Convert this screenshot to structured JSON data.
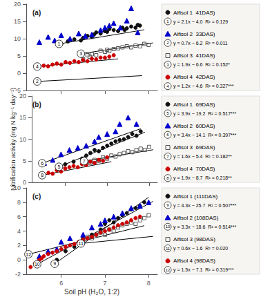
{
  "chart_data": [
    {
      "type": "scatter",
      "title": "(a)",
      "xlim": [
        5.2,
        8.2
      ],
      "xticks": [
        6,
        7,
        8
      ],
      "ylim": [
        -5,
        20
      ],
      "yticks": [
        -5,
        0,
        5,
        10,
        15,
        20
      ],
      "grid": false,
      "tick_labels": "y",
      "series": [
        {
          "name": "Alfisol 1  41DAS)",
          "marker": "circle",
          "color": "#111111",
          "number": 1,
          "number_at": [
            5.95,
            8.495
          ],
          "equation": "y = 2.1x − 4.0  R² = 0.129",
          "x": [
            6.0,
            6.15,
            6.3,
            6.45,
            6.5,
            6.6,
            6.7,
            6.75,
            6.8,
            6.9,
            7.0,
            7.05,
            7.1,
            7.2,
            7.3,
            7.4,
            7.45,
            7.5,
            7.6,
            7.7,
            7.75,
            7.8
          ],
          "y": [
            8.5,
            9.2,
            9.8,
            9.5,
            10.2,
            10.8,
            10.5,
            11.2,
            11.8,
            11.5,
            12.2,
            12.0,
            12.8,
            12.5,
            12.2,
            13.2,
            12.5,
            13.0,
            13.5,
            13.2,
            14.0,
            13.8
          ],
          "fit": {
            "x": [
              5.9,
              7.9
            ],
            "y": [
              8.39,
              12.59
            ]
          }
        },
        {
          "name": "Alfisol 2  33DAS)",
          "marker": "triangle",
          "color": "#0000cc",
          "number": 2,
          "number_at": [
            5.45,
            -2.385
          ],
          "equation": "y = 0.7x − 6.2  R² = 0.011",
          "x": [
            5.5,
            5.7,
            5.85,
            6.0,
            6.2,
            6.4,
            6.55,
            6.7,
            6.9,
            7.0,
            7.1,
            7.2,
            7.35,
            7.5,
            7.6,
            7.75
          ],
          "y": [
            9.0,
            10.5,
            9.5,
            11.0,
            10.0,
            11.5,
            10.8,
            11.2,
            12.5,
            13.2,
            13.8,
            14.5,
            13.2,
            15.2,
            18.8,
            11.8
          ],
          "fit": {
            "x": [
              5.4,
              7.85
            ],
            "y": [
              -2.42,
              -0.705
            ]
          }
        },
        {
          "name": "Alfisol 3  41DAS)",
          "marker": "square_open",
          "color": "#555555",
          "number": 3,
          "number_at": [
            6.45,
            5.655
          ],
          "equation": "y = 1.9x − 6.6  R² = 0.152*",
          "x": [
            6.5,
            6.6,
            6.65,
            6.7,
            6.8,
            6.9,
            7.0,
            7.05,
            7.1,
            7.2,
            7.3,
            7.4,
            7.5,
            7.6,
            7.7,
            7.8,
            7.9,
            8.0
          ],
          "y": [
            4.0,
            5.2,
            4.8,
            5.5,
            5.2,
            6.5,
            6.2,
            6.8,
            6.5,
            7.0,
            7.2,
            7.5,
            7.8,
            7.5,
            8.0,
            7.8,
            8.5,
            8.2
          ],
          "fit": {
            "x": [
              6.4,
              8.1
            ],
            "y": [
              5.56,
              8.79
            ]
          }
        },
        {
          "name": "Alfisol 4  42DAS)",
          "marker": "circle",
          "color": "#cc0000",
          "number": 4,
          "number_at": [
            5.45,
            1.94
          ],
          "equation": "y = 1.2x − 4.6  R² = 0.327***",
          "x": [
            5.5,
            5.6,
            5.7,
            5.8,
            5.9,
            6.0,
            6.1,
            6.2,
            6.3,
            6.4,
            6.5,
            6.6,
            6.7,
            6.8,
            6.9,
            7.0,
            7.1,
            7.2
          ],
          "y": [
            1.8,
            2.2,
            2.0,
            2.5,
            2.8,
            2.5,
            3.2,
            3.0,
            3.5,
            3.2,
            3.8,
            3.5,
            4.2,
            4.0,
            4.5,
            4.5,
            4.8,
            5.2
          ],
          "fit": {
            "x": [
              5.4,
              7.3
            ],
            "y": [
              1.88,
              4.16
            ]
          }
        }
      ]
    },
    {
      "type": "scatter",
      "title": "(b)",
      "ylabel": "Nitrification activity (mg N kg⁻¹ day⁻¹)",
      "xlim": [
        5.2,
        8.2
      ],
      "xticks": [
        6,
        7,
        8
      ],
      "ylim": [
        0,
        20
      ],
      "yticks": [
        0,
        5,
        10,
        15,
        20
      ],
      "grid": false,
      "tick_labels": "y",
      "series": [
        {
          "name": "Alfisol 1  69DAS)",
          "marker": "circle",
          "color": "#111111",
          "number": 5,
          "number_at": [
            5.85,
            3.615
          ],
          "equation": "y = 3.9x − 19.2  R² = 0.517***",
          "x": [
            5.9,
            6.0,
            6.2,
            6.4,
            6.5,
            6.6,
            6.7,
            6.8,
            6.9,
            7.0,
            7.1,
            7.2,
            7.3,
            7.4,
            7.5,
            7.6,
            7.7,
            7.8
          ],
          "y": [
            3.5,
            4.2,
            4.8,
            5.5,
            6.2,
            6.8,
            7.5,
            7.2,
            8.0,
            8.5,
            9.0,
            9.5,
            9.8,
            10.0,
            10.5,
            11.2,
            10.8,
            11.8
          ],
          "fit": {
            "x": [
              5.8,
              7.9
            ],
            "y": [
              3.42,
              11.61
            ]
          }
        },
        {
          "name": "Alfisol 2  60DAS)",
          "marker": "triangle",
          "color": "#0000cc",
          "number": 6,
          "number_at": [
            5.45,
            4.43
          ],
          "equation": "y = 3.4x − 14.1  R² = 0.397***",
          "x": [
            5.5,
            5.7,
            5.9,
            6.1,
            6.3,
            6.5,
            6.7,
            6.8,
            7.0,
            7.2,
            7.3,
            7.5,
            7.7
          ],
          "y": [
            4.5,
            5.2,
            6.5,
            7.5,
            8.0,
            8.5,
            9.5,
            10.5,
            11.2,
            11.8,
            13.5,
            15.0,
            13.5
          ],
          "fit": {
            "x": [
              5.4,
              7.8
            ],
            "y": [
              4.26,
              12.42
            ]
          }
        },
        {
          "name": "Alfisol 3  69DAS)",
          "marker": "square_open",
          "color": "#555555",
          "number": 7,
          "number_at": [
            6.45,
            4.92
          ],
          "equation": "y = 1.6x − 5.4  R² = 0.182**",
          "x": [
            6.5,
            6.6,
            6.7,
            6.8,
            6.9,
            7.0,
            7.1,
            7.2,
            7.3,
            7.4,
            7.5,
            7.6,
            7.7,
            7.8,
            7.9,
            8.0
          ],
          "y": [
            4.8,
            4.5,
            5.2,
            5.0,
            5.8,
            5.5,
            6.2,
            6.0,
            6.5,
            6.8,
            7.2,
            7.0,
            7.5,
            7.8,
            7.5,
            8.2
          ],
          "fit": {
            "x": [
              6.4,
              8.1
            ],
            "y": [
              4.84,
              7.56
            ]
          }
        },
        {
          "name": "Alfisol 4  70DAS)",
          "marker": "circle",
          "color": "#cc0000",
          "number": 8,
          "number_at": [
            5.45,
            1.655
          ],
          "equation": "y = 1.9x − 8.7  R² = 0.218**",
          "x": [
            5.5,
            5.6,
            5.7,
            5.8,
            5.9,
            6.0,
            6.1,
            6.2,
            6.3,
            6.4,
            6.5,
            6.6,
            6.7,
            6.8,
            6.9,
            7.0
          ],
          "y": [
            1.8,
            2.2,
            2.0,
            2.8,
            2.5,
            3.2,
            3.5,
            3.8,
            3.5,
            4.2,
            4.0,
            4.8,
            4.5,
            5.2,
            5.0,
            5.8
          ],
          "fit": {
            "x": [
              5.4,
              7.1
            ],
            "y": [
              1.56,
              4.79
            ]
          }
        }
      ]
    },
    {
      "type": "scatter",
      "title": "(c)",
      "xlabel": "Soil pH (H₂O, 1:2)",
      "xlim": [
        5.2,
        8.2
      ],
      "xticks": [
        6,
        7,
        8
      ],
      "ylim": [
        -2,
        10
      ],
      "yticks": [
        -2,
        0,
        2,
        4,
        6,
        8,
        10
      ],
      "grid": false,
      "series": [
        {
          "name": "Alfisol 1 (111DAS)",
          "marker": "circle",
          "color": "#111111",
          "number": 9,
          "number_at": [
            5.85,
            -0.545
          ],
          "equation": "y = 4.3x − 25.7  R² = 0.507***",
          "x": [
            5.9,
            6.1,
            6.3,
            6.5,
            6.7,
            6.9,
            7.0,
            7.1,
            7.2,
            7.3,
            7.4,
            7.5,
            7.6,
            7.7,
            7.8,
            7.9
          ],
          "y": [
            0.0,
            1.2,
            1.8,
            3.0,
            3.5,
            4.2,
            5.0,
            5.5,
            5.2,
            5.8,
            6.2,
            6.5,
            7.0,
            7.2,
            7.5,
            8.0
          ],
          "fit": {
            "x": [
              5.8,
              8.0
            ],
            "y": [
              -0.76,
              8.7
            ]
          }
        },
        {
          "name": "Alfisol 2 (108DAS)",
          "marker": "triangle",
          "color": "#0000cc",
          "number": 10,
          "number_at": [
            5.45,
            -0.615
          ],
          "equation": "y = 3.3x − 18.6  R² = 0.514***",
          "x": [
            5.5,
            5.7,
            5.9,
            6.0,
            6.2,
            6.5,
            6.7,
            6.9,
            7.0,
            7.2,
            7.4,
            7.6,
            7.8,
            8.0
          ],
          "y": [
            0.5,
            1.2,
            1.5,
            2.5,
            3.0,
            3.5,
            4.5,
            5.0,
            5.5,
            6.0,
            6.5,
            7.2,
            7.5,
            8.0
          ],
          "fit": {
            "x": [
              5.4,
              8.1
            ],
            "y": [
              -0.78,
              8.13
            ]
          }
        },
        {
          "name": "Alfisol 3 (98DAS)",
          "marker": "square_open",
          "color": "#555555",
          "number": 11,
          "number_at": [
            6.45,
            2.27
          ],
          "equation": "y = 0.6x − 1.6  R² = 0.020",
          "x": [
            6.5,
            6.6,
            6.7,
            6.8,
            6.9,
            7.0,
            7.1,
            7.2,
            7.3,
            7.4,
            7.5,
            7.6,
            7.7,
            7.8,
            7.9,
            8.0
          ],
          "y": [
            2.8,
            3.2,
            3.0,
            3.5,
            3.8,
            3.5,
            4.2,
            4.0,
            4.5,
            4.8,
            5.0,
            5.2,
            5.0,
            5.5,
            5.8,
            6.2
          ],
          "fit": {
            "x": [
              6.4,
              8.1
            ],
            "y": [
              2.24,
              3.26
            ]
          }
        },
        {
          "name": "Alfisol 4 (98DAS)",
          "marker": "circle",
          "color": "#cc0000",
          "number": 12,
          "number_at": [
            5.25,
            0.775
          ],
          "equation": "y = 1.5x − 7.1  R² = 0.319***",
          "x": [
            5.3,
            5.4,
            5.5,
            5.55,
            5.6,
            5.7,
            5.8,
            5.9,
            6.0,
            6.1,
            6.2,
            6.3,
            6.4,
            6.5,
            6.6,
            6.7,
            6.8,
            6.9,
            7.0,
            7.1,
            7.2,
            7.3,
            7.4,
            7.5,
            7.6,
            7.7,
            7.8
          ],
          "y": [
            -1.0,
            -0.5,
            0.0,
            0.2,
            0.5,
            0.8,
            1.0,
            1.2,
            1.5,
            1.8,
            2.0,
            2.2,
            2.5,
            2.8,
            3.0,
            3.2,
            3.5,
            3.8,
            4.0,
            4.2,
            4.5,
            4.8,
            5.0,
            5.2,
            5.5,
            5.8,
            6.0
          ],
          "fit": {
            "x": [
              5.2,
              7.9
            ],
            "y": [
              0.7,
              4.75
            ]
          }
        }
      ]
    }
  ]
}
